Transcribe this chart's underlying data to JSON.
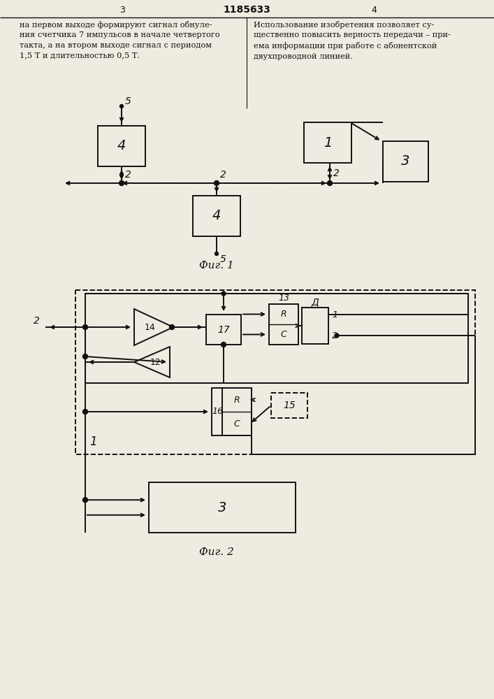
{
  "bg_color": "#f0ebe0",
  "lc": "#111111",
  "bc": "#f0ebe0",
  "page_left": "3",
  "page_center": "1185633",
  "page_right": "4",
  "text_left": "на первом выходе формируют сигнал обнуле-\nния счетчика 7 импульсов в начале четвертого\nтакта, а на втором выходе сигнал с периодом\n1,5 Т и длительностью 0,5 Т.",
  "text_right": "Использование изобретения позволяет су-\nщественно повысить верность передачи – при-\nема информации при работе с абонентской\nдвухпроводной линией.",
  "fig1_label": "Фиг. 1",
  "fig2_label": "Фиг. 2"
}
